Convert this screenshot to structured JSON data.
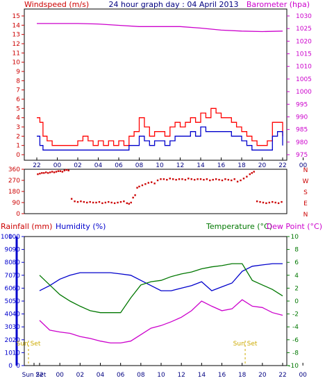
{
  "chart_data": [
    {
      "id": "wind_baro",
      "type": "line",
      "title": "24 hour graph day : 04 April 2013",
      "left_label": "Windspeed (m/s)",
      "right_label": "Barometer (hpa)",
      "x_tick_labels": [
        "22",
        "00",
        "02",
        "04",
        "06",
        "08",
        "10",
        "12",
        "14",
        "16",
        "18",
        "20",
        "22",
        "00"
      ],
      "left_ticks": [
        "0",
        "1",
        "2",
        "3",
        "4",
        "5",
        "6",
        "7",
        "8",
        "9",
        "10",
        "11",
        "12",
        "13",
        "14",
        "15"
      ],
      "right_ticks": [
        "975",
        "980",
        "985",
        "990",
        "995",
        "1000",
        "1005",
        "1010",
        "1015",
        "1020",
        "1025",
        "1030"
      ],
      "left_ylim": [
        0,
        15
      ],
      "right_ylim": [
        975,
        1030
      ],
      "colors": {
        "gust": "#ff0000",
        "speed": "#0000cc",
        "barometer": "#cc00cc",
        "left_axis": "#cc0000",
        "right_axis": "#cc00cc"
      },
      "series": [
        {
          "key": "barometer",
          "axis": "right",
          "x": [
            0,
            2,
            4,
            6,
            8,
            10,
            12,
            14,
            16,
            18,
            20,
            22,
            24
          ],
          "values": [
            1027,
            1027,
            1027,
            1026.8,
            1026.3,
            1025.8,
            1025.8,
            1025.8,
            1025.2,
            1024.4,
            1024,
            1023.8,
            1024
          ]
        },
        {
          "key": "gust",
          "axis": "left",
          "x": [
            0,
            0.3,
            0.6,
            1,
            1.5,
            2,
            2.5,
            3,
            3.5,
            4,
            4.5,
            5,
            5.5,
            6,
            6.5,
            7,
            7.5,
            8,
            8.5,
            9,
            9.5,
            10,
            10.5,
            11,
            11.5,
            12,
            12.5,
            13,
            13.5,
            14,
            14.5,
            15,
            15.5,
            16,
            16.5,
            17,
            17.5,
            18,
            18.5,
            19,
            19.5,
            20,
            20.5,
            21,
            21.5,
            22,
            22.5,
            23,
            23.5,
            24
          ],
          "values": [
            4,
            3.5,
            2,
            1.5,
            1,
            1,
            1,
            1,
            1,
            1.5,
            2,
            1.5,
            1,
            1.5,
            1,
            1.5,
            1,
            1.5,
            1,
            2,
            2.5,
            4,
            3,
            2,
            2.5,
            2.5,
            2,
            3,
            3.5,
            3,
            3.5,
            4,
            3.5,
            4.5,
            4,
            5,
            4.5,
            4,
            4,
            3.5,
            3,
            2.5,
            2,
            1.5,
            1,
            1,
            1.5,
            3.5,
            3.5,
            2
          ]
        },
        {
          "key": "speed",
          "axis": "left",
          "x": [
            0,
            0.3,
            0.6,
            1,
            1.5,
            2,
            2.5,
            3,
            3.5,
            4,
            4.5,
            5,
            5.5,
            6,
            6.5,
            7,
            7.5,
            8,
            8.5,
            9,
            9.5,
            10,
            10.5,
            11,
            11.5,
            12,
            12.5,
            13,
            13.5,
            14,
            14.5,
            15,
            15.5,
            16,
            16.5,
            17,
            17.5,
            18,
            18.5,
            19,
            19.5,
            20,
            20.5,
            21,
            21.5,
            22,
            22.5,
            23,
            23.5,
            24
          ],
          "values": [
            2,
            1,
            0.5,
            0.5,
            0.5,
            0.5,
            0.5,
            0.5,
            0.5,
            0.5,
            0.5,
            0.5,
            0.5,
            0.5,
            0.5,
            0.5,
            0.5,
            0.5,
            0.5,
            1,
            1,
            2,
            1.5,
            1,
            1.5,
            1.5,
            1,
            1.5,
            2,
            2,
            2,
            2.5,
            2,
            3,
            2.5,
            2.5,
            2.5,
            2.5,
            2.5,
            2,
            2,
            1.5,
            1,
            0.5,
            0.5,
            0.5,
            0.5,
            2,
            2.5,
            1
          ]
        }
      ]
    },
    {
      "id": "wind_dir",
      "type": "scatter",
      "left_ticks": [
        "0",
        "90",
        "180",
        "270",
        "360"
      ],
      "right_labels": [
        "N",
        "W",
        "S",
        "E",
        "N"
      ],
      "ylim": [
        0,
        360
      ],
      "color": "#cc0000",
      "x": [
        0.1,
        0.3,
        0.5,
        0.7,
        0.9,
        1.1,
        1.3,
        1.5,
        1.7,
        1.9,
        2.1,
        2.3,
        2.5,
        2.7,
        2.9,
        3.1,
        3.4,
        3.7,
        4.0,
        4.3,
        4.6,
        4.9,
        5.2,
        5.5,
        5.8,
        6.1,
        6.4,
        6.7,
        7.0,
        7.3,
        7.6,
        7.9,
        8.2,
        8.5,
        8.8,
        9.0,
        9.2,
        9.4,
        9.6,
        9.8,
        10.0,
        10.3,
        10.6,
        10.9,
        11.2,
        11.5,
        11.8,
        12.1,
        12.4,
        12.7,
        13.0,
        13.3,
        13.6,
        13.9,
        14.2,
        14.5,
        14.8,
        15.1,
        15.4,
        15.7,
        16.0,
        16.3,
        16.6,
        16.9,
        17.2,
        17.5,
        17.8,
        18.1,
        18.4,
        18.7,
        19.0,
        19.3,
        19.6,
        19.9,
        20.2,
        20.5,
        20.8,
        21.0,
        21.2,
        21.5,
        21.8,
        22.1,
        22.4,
        22.7,
        23.0,
        23.3,
        23.6,
        23.9
      ],
      "values": [
        320,
        325,
        330,
        330,
        335,
        330,
        335,
        340,
        335,
        340,
        345,
        345,
        340,
        350,
        355,
        350,
        120,
        100,
        95,
        100,
        95,
        90,
        95,
        90,
        90,
        95,
        85,
        90,
        95,
        90,
        85,
        90,
        95,
        100,
        85,
        80,
        90,
        130,
        150,
        210,
        220,
        230,
        240,
        250,
        255,
        245,
        270,
        280,
        280,
        275,
        285,
        280,
        275,
        280,
        280,
        275,
        285,
        280,
        275,
        280,
        280,
        275,
        280,
        270,
        275,
        280,
        275,
        270,
        280,
        275,
        270,
        280,
        260,
        270,
        285,
        300,
        320,
        330,
        340,
        100,
        95,
        90,
        85,
        90,
        95,
        90,
        85,
        95
      ]
    },
    {
      "id": "rain_hum_temp",
      "type": "line",
      "left_label_rain": "Rainfall (mm)",
      "left_label_hum": "Humidity (%)",
      "right_label_temp": "Temperature (°C)",
      "right_label_dew": "Dew Point (°C)",
      "x_tick_labels": [
        "Sun Set",
        "22",
        "00",
        "02",
        "04",
        "06",
        "08",
        "10",
        "12",
        "14",
        "16",
        "18",
        "20",
        "22",
        "00"
      ],
      "sun_set_label": "Sun Set",
      "humidity_ticks": [
        "0",
        "10",
        "20",
        "30",
        "40",
        "50",
        "60",
        "70",
        "80",
        "90",
        "100"
      ],
      "temp_ticks": [
        "-10",
        "-8",
        "-6",
        "-4",
        "-2",
        "0",
        "2",
        "4",
        "6",
        "8",
        "10"
      ],
      "humidity_ylim": [
        0,
        100
      ],
      "temp_ylim": [
        -10,
        10
      ],
      "colors": {
        "rain": "#cc0000",
        "humidity": "#0000cc",
        "temperature": "#007700",
        "dewpoint": "#cc00cc",
        "sunset": "#ccaa00"
      },
      "series": [
        {
          "key": "humidity",
          "axis": "left",
          "x": [
            0,
            1,
            2,
            3,
            4,
            5,
            6,
            7,
            8,
            9,
            10,
            11,
            12,
            13,
            14,
            15,
            16,
            17,
            18,
            19,
            20,
            21,
            22,
            23,
            24
          ],
          "values": [
            58,
            62,
            67,
            70,
            72,
            72,
            72,
            72,
            71,
            70,
            66,
            62,
            58,
            58,
            60,
            62,
            65,
            58,
            61,
            64,
            73,
            77,
            78,
            79,
            79
          ]
        },
        {
          "key": "temperature",
          "axis": "right",
          "x": [
            0,
            1,
            2,
            3,
            4,
            5,
            6,
            7,
            8,
            9,
            10,
            11,
            12,
            13,
            14,
            15,
            16,
            17,
            18,
            19,
            20,
            21,
            22,
            23,
            24
          ],
          "values": [
            4.0,
            2.5,
            1.0,
            0.0,
            -0.8,
            -1.5,
            -1.8,
            -1.8,
            -1.8,
            0.5,
            2.5,
            3.0,
            3.2,
            3.8,
            4.2,
            4.5,
            5.0,
            5.3,
            5.5,
            5.8,
            5.8,
            3.2,
            2.5,
            1.8,
            0.8
          ]
        },
        {
          "key": "dewpoint",
          "axis": "right",
          "x": [
            0,
            1,
            2,
            3,
            4,
            5,
            6,
            7,
            8,
            9,
            10,
            11,
            12,
            13,
            14,
            15,
            16,
            17,
            18,
            19,
            20,
            21,
            22,
            23,
            24
          ],
          "values": [
            -3.0,
            -4.5,
            -4.8,
            -5.0,
            -5.5,
            -5.8,
            -6.2,
            -6.5,
            -6.5,
            -6.2,
            -5.2,
            -4.2,
            -3.8,
            -3.2,
            -2.5,
            -1.5,
            0.0,
            -0.8,
            -1.5,
            -1.2,
            0.2,
            -0.8,
            -1.0,
            -1.8,
            -2.2
          ]
        }
      ]
    }
  ]
}
